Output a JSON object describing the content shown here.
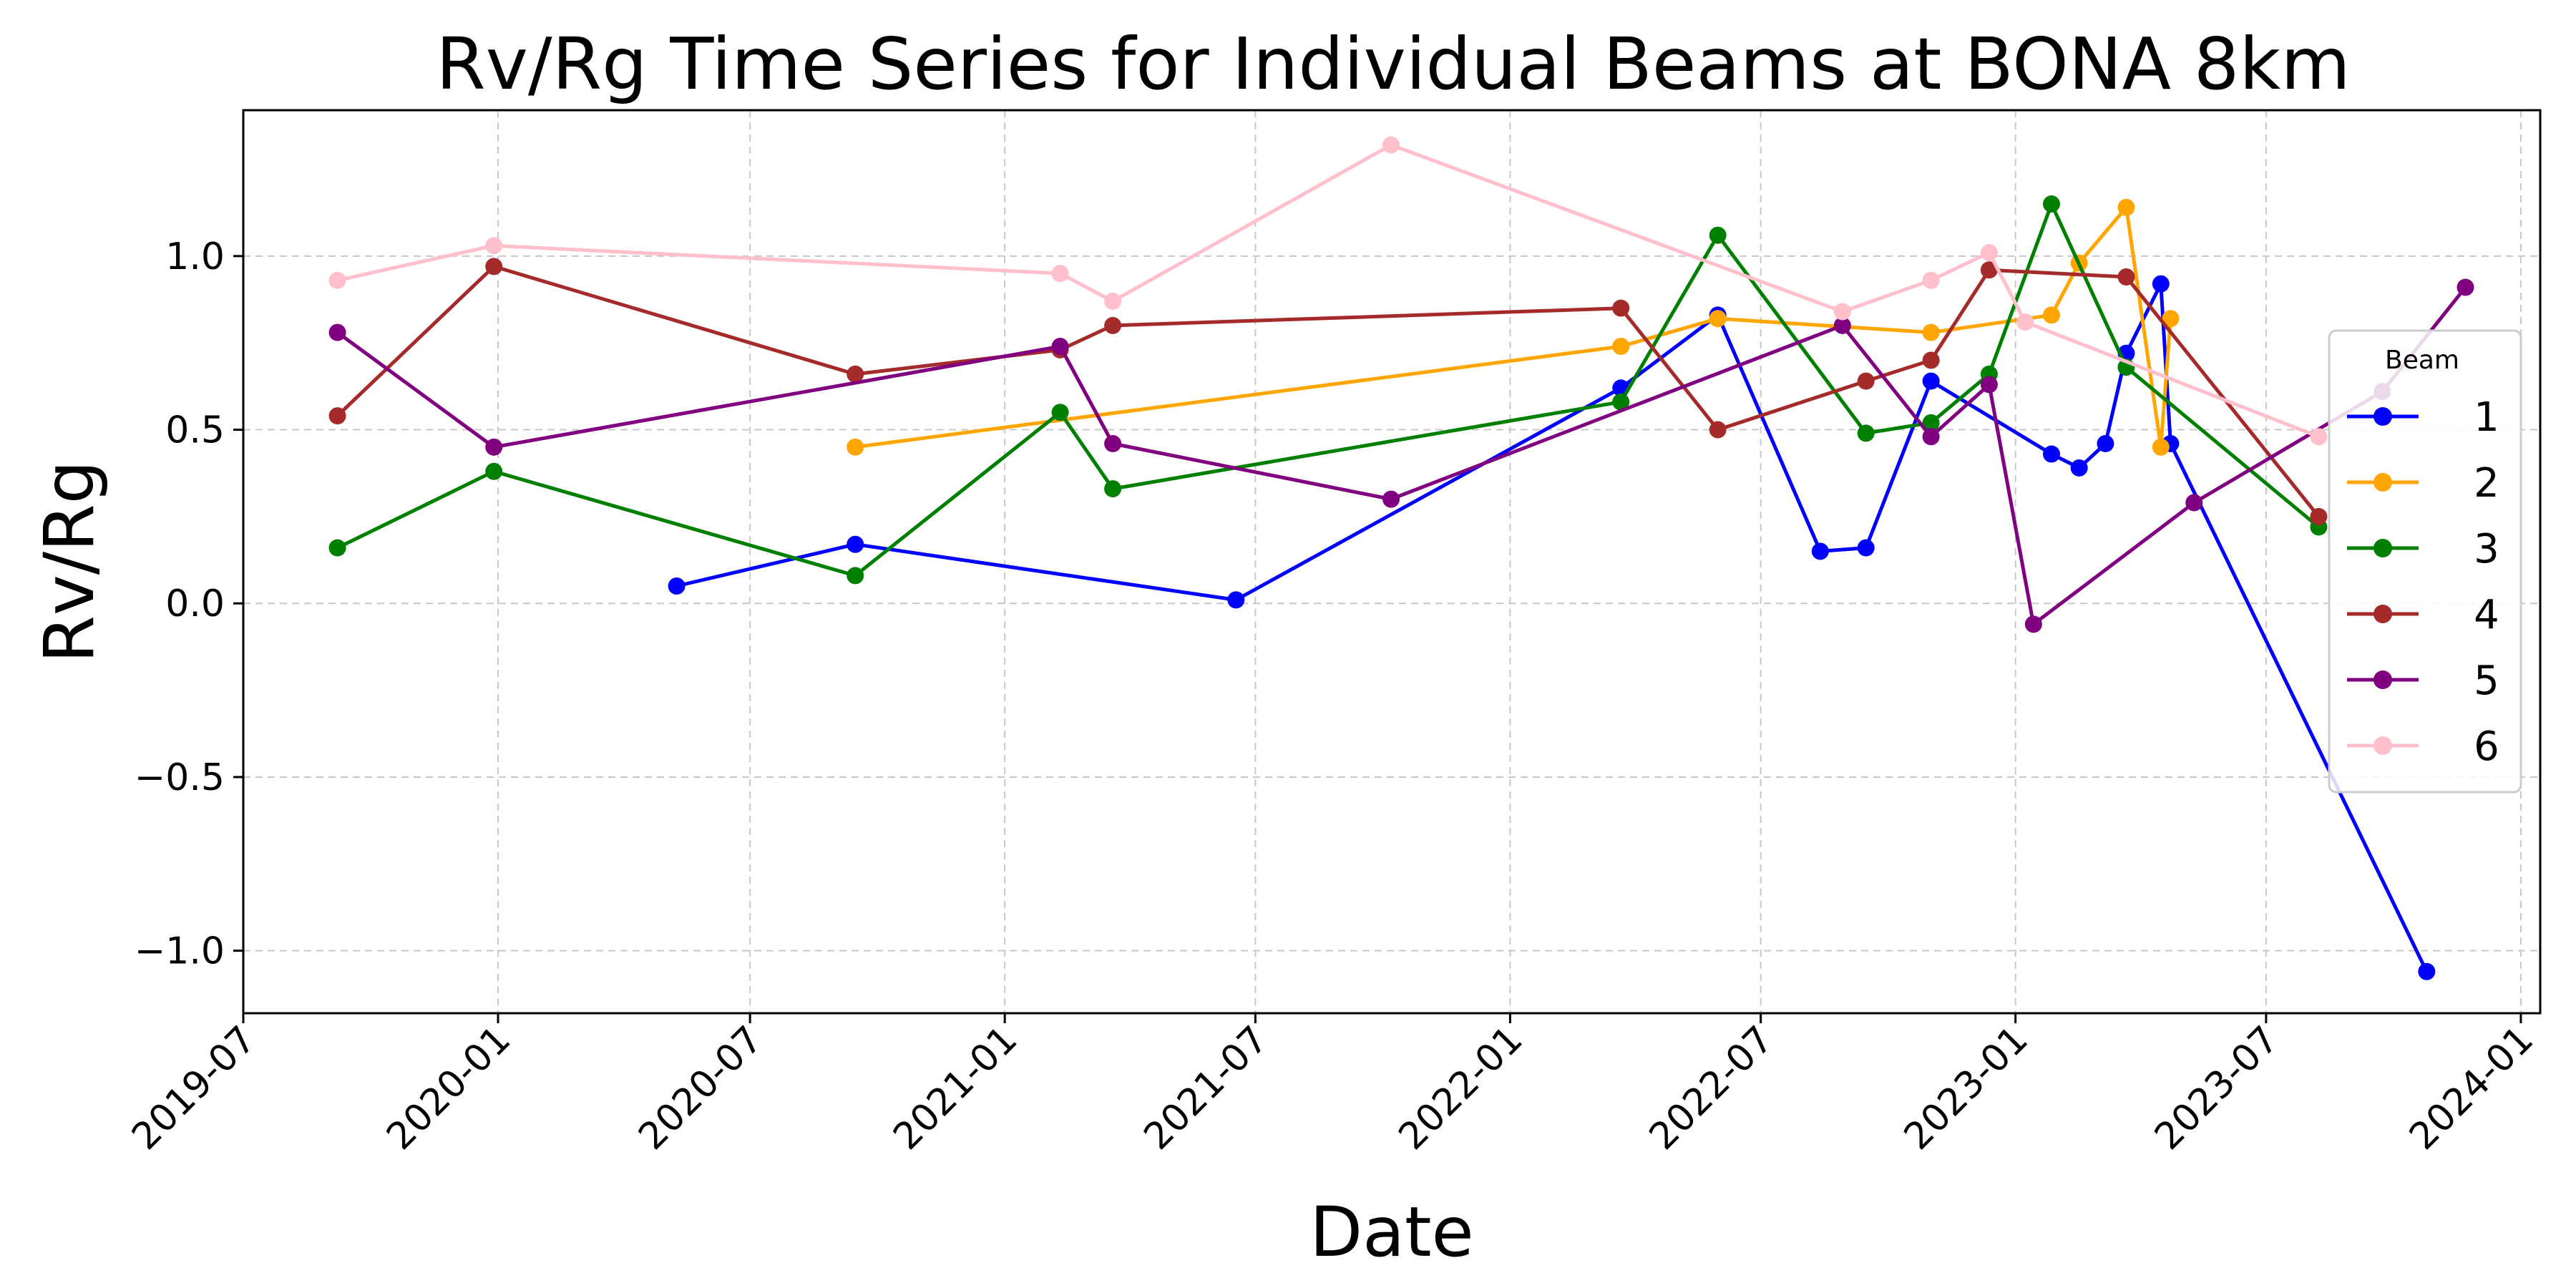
{
  "chart_data": {
    "type": "line",
    "title": "Rv/Rg Time Series for Individual Beams at BONA 8km",
    "xlabel": "Date",
    "ylabel": "Rv/Rg",
    "x_axis_type": "date",
    "xlim": [
      "2019-07-01",
      "2024-01-15"
    ],
    "ylim": [
      -1.18,
      1.42
    ],
    "x_ticks": [
      "2019-07",
      "2020-01",
      "2020-07",
      "2021-01",
      "2021-07",
      "2022-01",
      "2022-07",
      "2023-01",
      "2023-07",
      "2024-01"
    ],
    "y_ticks": [
      1.0,
      0.5,
      0.0,
      -0.5,
      -1.0
    ],
    "y_tick_labels": [
      "1.0",
      "0.5",
      "0.0",
      "−0.5",
      "−1.0"
    ],
    "grid": true,
    "legend_title": "Beam",
    "legend_position": "right",
    "series": [
      {
        "name": "1",
        "color": "#0000ff",
        "points": [
          [
            "2020-05-09",
            0.05
          ],
          [
            "2020-09-15",
            0.17
          ],
          [
            "2021-06-17",
            0.01
          ],
          [
            "2022-03-22",
            0.62
          ],
          [
            "2022-05-31",
            0.83
          ],
          [
            "2022-08-13",
            0.15
          ],
          [
            "2022-09-15",
            0.16
          ],
          [
            "2022-11-01",
            0.64
          ],
          [
            "2023-01-27",
            0.43
          ],
          [
            "2023-02-16",
            0.39
          ],
          [
            "2023-03-07",
            0.46
          ],
          [
            "2023-03-22",
            0.72
          ],
          [
            "2023-04-16",
            0.92
          ],
          [
            "2023-04-23",
            0.46
          ],
          [
            "2023-10-25",
            -1.06
          ]
        ]
      },
      {
        "name": "2",
        "color": "#ffa500",
        "points": [
          [
            "2020-09-15",
            0.45
          ],
          [
            "2022-03-22",
            0.74
          ],
          [
            "2022-05-31",
            0.82
          ],
          [
            "2022-11-01",
            0.78
          ],
          [
            "2023-01-27",
            0.83
          ],
          [
            "2023-02-16",
            0.98
          ],
          [
            "2023-03-22",
            1.14
          ],
          [
            "2023-04-16",
            0.45
          ],
          [
            "2023-04-23",
            0.82
          ]
        ]
      },
      {
        "name": "3",
        "color": "#008000",
        "points": [
          [
            "2019-09-07",
            0.16
          ],
          [
            "2019-12-29",
            0.38
          ],
          [
            "2020-09-15",
            0.08
          ],
          [
            "2021-02-10",
            0.55
          ],
          [
            "2021-03-20",
            0.33
          ],
          [
            "2022-03-22",
            0.58
          ],
          [
            "2022-05-31",
            1.06
          ],
          [
            "2022-09-15",
            0.49
          ],
          [
            "2022-11-01",
            0.52
          ],
          [
            "2022-12-13",
            0.66
          ],
          [
            "2023-01-27",
            1.15
          ],
          [
            "2023-03-22",
            0.68
          ],
          [
            "2023-08-08",
            0.22
          ]
        ]
      },
      {
        "name": "4",
        "color": "#a52a2a",
        "points": [
          [
            "2019-09-07",
            0.54
          ],
          [
            "2019-12-29",
            0.97
          ],
          [
            "2020-09-15",
            0.66
          ],
          [
            "2021-02-10",
            0.73
          ],
          [
            "2021-03-20",
            0.8
          ],
          [
            "2022-03-22",
            0.85
          ],
          [
            "2022-05-31",
            0.5
          ],
          [
            "2022-09-15",
            0.64
          ],
          [
            "2022-11-01",
            0.7
          ],
          [
            "2022-12-13",
            0.96
          ],
          [
            "2023-03-22",
            0.94
          ],
          [
            "2023-08-08",
            0.25
          ]
        ]
      },
      {
        "name": "5",
        "color": "#800080",
        "points": [
          [
            "2019-09-07",
            0.78
          ],
          [
            "2019-12-29",
            0.45
          ],
          [
            "2021-02-10",
            0.74
          ],
          [
            "2021-03-20",
            0.46
          ],
          [
            "2021-10-07",
            0.3
          ],
          [
            "2022-08-29",
            0.8
          ],
          [
            "2022-11-01",
            0.48
          ],
          [
            "2022-12-13",
            0.63
          ],
          [
            "2023-01-14",
            -0.06
          ],
          [
            "2023-05-10",
            0.29
          ],
          [
            "2023-09-23",
            0.61
          ],
          [
            "2023-11-22",
            0.91
          ]
        ]
      },
      {
        "name": "6",
        "color": "#ffc0cb",
        "points": [
          [
            "2019-09-07",
            0.93
          ],
          [
            "2019-12-29",
            1.03
          ],
          [
            "2021-02-10",
            0.95
          ],
          [
            "2021-03-20",
            0.87
          ],
          [
            "2021-10-07",
            1.32
          ],
          [
            "2022-08-29",
            0.84
          ],
          [
            "2022-11-01",
            0.93
          ],
          [
            "2022-12-13",
            1.01
          ],
          [
            "2023-01-08",
            0.81
          ],
          [
            "2023-08-08",
            0.48
          ]
        ]
      }
    ]
  }
}
